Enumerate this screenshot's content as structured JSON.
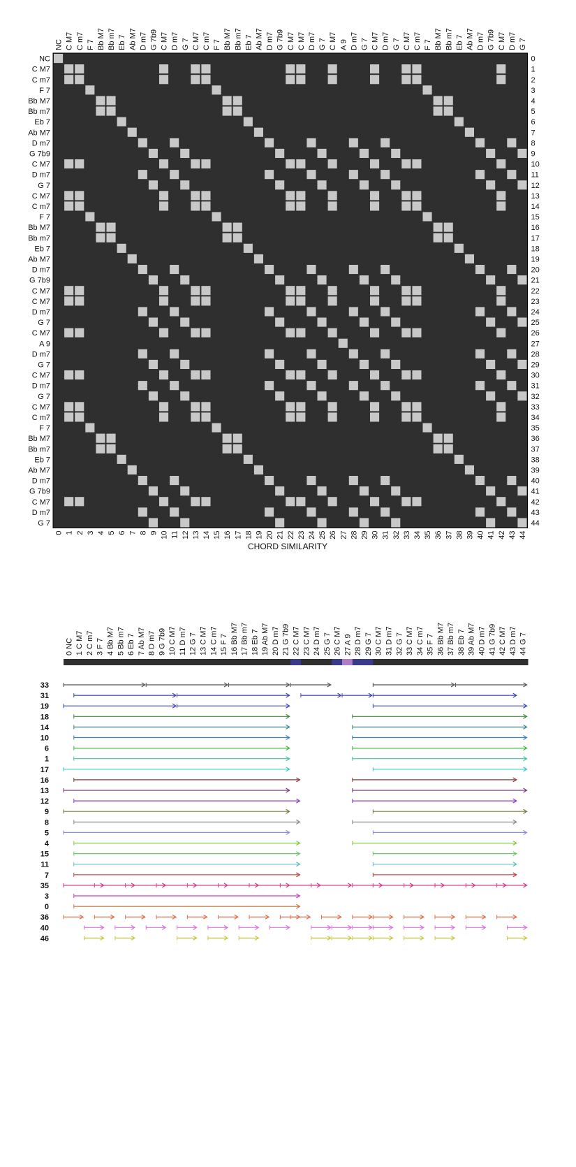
{
  "matrix": {
    "title": "CHORD SIMILARITY",
    "chords": [
      "NC",
      "C M7",
      "C m7",
      "F 7",
      "Bb M7",
      "Bb m7",
      "Eb 7",
      "Ab M7",
      "D m7",
      "G 7b9",
      "C M7",
      "D m7",
      "G 7",
      "C M7",
      "C m7",
      "F 7",
      "Bb M7",
      "Bb m7",
      "Eb 7",
      "Ab M7",
      "D m7",
      "G 7b9",
      "C M7",
      "C M7",
      "D m7",
      "G 7",
      "C M7",
      "A 9",
      "D m7",
      "G 7",
      "C M7",
      "D m7",
      "G 7",
      "C M7",
      "C m7",
      "F 7",
      "Bb M7",
      "Bb m7",
      "Eb 7",
      "Ab M7",
      "D m7",
      "G 7b9",
      "C M7",
      "D m7",
      "G 7"
    ],
    "colors": {
      "similar": "#c8c8c8",
      "dissimilar": "#2f2f2f",
      "grid": "#000000"
    }
  },
  "arcs": {
    "segment_colors": {
      "default": "#2f2f2f",
      "highlight": "#3a3a8c",
      "accent": "#b07cc6"
    },
    "highlight_segments": [
      22,
      26,
      28,
      29
    ],
    "accent_segments": [
      27
    ],
    "rows": [
      {
        "label": "33",
        "color": "#555555"
      },
      {
        "label": "31",
        "color": "#3b44a8"
      },
      {
        "label": "19",
        "color": "#3f4bc0"
      },
      {
        "label": "18",
        "color": "#3f8a3a"
      },
      {
        "label": "14",
        "color": "#3a8a8a"
      },
      {
        "label": "10",
        "color": "#3f7fc8"
      },
      {
        "label": "6",
        "color": "#3fb83f"
      },
      {
        "label": "1",
        "color": "#3fc89a"
      },
      {
        "label": "17",
        "color": "#3fc8c8"
      },
      {
        "label": "16",
        "color": "#8a3a3a"
      },
      {
        "label": "13",
        "color": "#7a3a7a"
      },
      {
        "label": "12",
        "color": "#8a3fc8"
      },
      {
        "label": "9",
        "color": "#7a7a3a"
      },
      {
        "label": "8",
        "color": "#8a8a8a"
      },
      {
        "label": "5",
        "color": "#8a8ae0"
      },
      {
        "label": "4",
        "color": "#8ac83f"
      },
      {
        "label": "15",
        "color": "#6ac86a"
      },
      {
        "label": "11",
        "color": "#6ab8c8"
      },
      {
        "label": "7",
        "color": "#c83f3f"
      },
      {
        "label": "35",
        "color": "#d03a8a"
      },
      {
        "label": "3",
        "color": "#c83fc8"
      },
      {
        "label": "0",
        "color": "#c8783f"
      },
      {
        "label": "36",
        "color": "#e0704a"
      },
      {
        "label": "40",
        "color": "#e070e0"
      },
      {
        "label": "46",
        "color": "#c8c83f"
      }
    ]
  }
}
